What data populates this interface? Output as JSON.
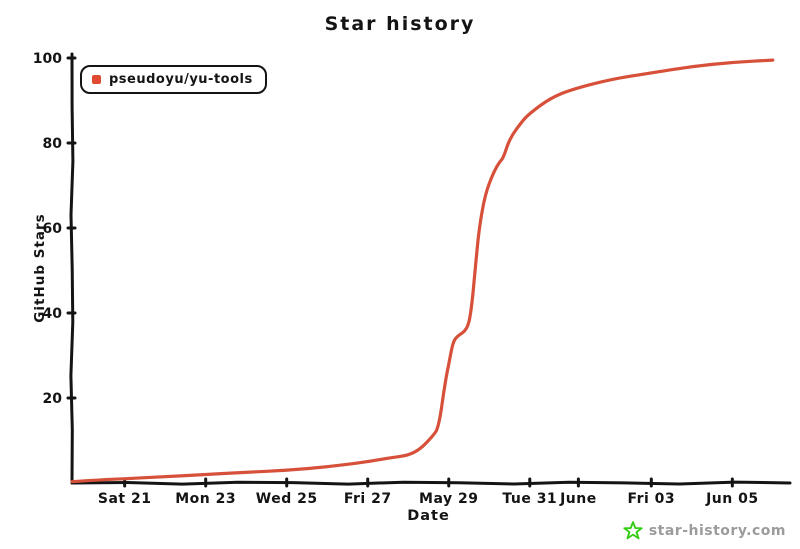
{
  "chart_data": {
    "type": "line",
    "title": "Star history",
    "xlabel": "Date",
    "ylabel": "GitHub Stars",
    "grid": false,
    "legend_position": "top-left",
    "xlim": [
      0.7,
      18.3
    ],
    "ylim": [
      0,
      100
    ],
    "x_unit": "day offset matching the visible date tick labels",
    "x_ticks": [
      {
        "label": "Sat 21",
        "day": 2
      },
      {
        "label": "Mon 23",
        "day": 4
      },
      {
        "label": "Wed 25",
        "day": 6
      },
      {
        "label": "Fri 27",
        "day": 8
      },
      {
        "label": "May 29",
        "day": 10
      },
      {
        "label": "Tue 31",
        "day": 12
      },
      {
        "label": "June",
        "day": 13.2
      },
      {
        "label": "Fri 03",
        "day": 15
      },
      {
        "label": "Jun 05",
        "day": 17
      }
    ],
    "y_ticks": [
      20,
      40,
      60,
      80,
      100
    ],
    "series": [
      {
        "name": "pseudoyu/yu-tools",
        "color": "#d6503a",
        "points": [
          [
            0.7,
            0.3
          ],
          [
            1.5,
            0.8
          ],
          [
            2,
            1
          ],
          [
            3,
            1.5
          ],
          [
            4,
            2
          ],
          [
            5,
            2.5
          ],
          [
            6,
            3
          ],
          [
            7,
            3.8
          ],
          [
            8,
            5
          ],
          [
            8.6,
            6
          ],
          [
            9,
            6.5
          ],
          [
            9.3,
            8
          ],
          [
            9.6,
            11
          ],
          [
            9.75,
            13
          ],
          [
            9.9,
            23
          ],
          [
            10.0,
            28
          ],
          [
            10.1,
            33
          ],
          [
            10.2,
            34.5
          ],
          [
            10.45,
            36
          ],
          [
            10.55,
            40
          ],
          [
            10.65,
            50
          ],
          [
            10.75,
            60
          ],
          [
            10.9,
            68
          ],
          [
            11.1,
            73
          ],
          [
            11.25,
            75.5
          ],
          [
            11.35,
            76.5
          ],
          [
            11.5,
            81
          ],
          [
            11.8,
            85
          ],
          [
            12,
            87
          ],
          [
            12.5,
            90.5
          ],
          [
            13,
            92.5
          ],
          [
            14,
            95
          ],
          [
            15,
            96.5
          ],
          [
            16,
            98
          ],
          [
            17,
            99
          ],
          [
            18,
            99.5
          ]
        ]
      }
    ]
  },
  "legend": {
    "label": "pseudoyu/yu-tools",
    "marker_color": "#df4a31"
  },
  "logo": {
    "text": "star-history.com",
    "star_color": "#33cc11",
    "text_color": "#9c9c9c"
  },
  "colors": {
    "line": "#d6503a",
    "axis": "#141414",
    "tick_label": "#141414",
    "background": "#ffffff"
  }
}
